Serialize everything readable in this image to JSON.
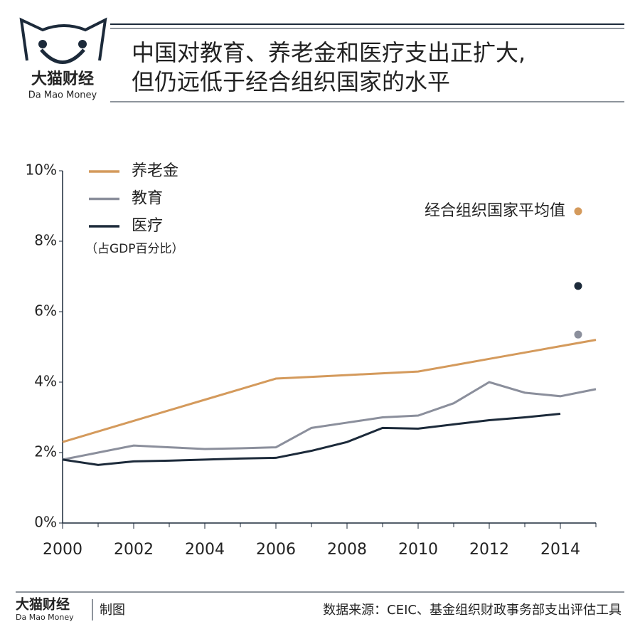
{
  "header": {
    "brand": "大猫财经",
    "brand_en": "Da Mao Money",
    "title_line1": "中国对教育、养老金和医疗支出正扩大,",
    "title_line2": "但仍远低于经合组织国家的水平"
  },
  "chart_data": {
    "type": "line",
    "unit_note": "（占GDP百分比）",
    "x": [
      2000,
      2001,
      2002,
      2003,
      2004,
      2005,
      2006,
      2007,
      2008,
      2009,
      2010,
      2011,
      2012,
      2013,
      2014,
      2015
    ],
    "xlim": [
      2000,
      2015
    ],
    "xticks": [
      2000,
      2002,
      2004,
      2006,
      2008,
      2010,
      2012,
      2014
    ],
    "ylim": [
      0,
      10
    ],
    "yticks": [
      {
        "value": 0,
        "label": "0%"
      },
      {
        "value": 2,
        "label": "2%"
      },
      {
        "value": 4,
        "label": "4%"
      },
      {
        "value": 6,
        "label": "6%"
      },
      {
        "value": 8,
        "label": "8%"
      },
      {
        "value": 10,
        "label": "10%"
      }
    ],
    "series": [
      {
        "name": "养老金",
        "color": "#d49a5c",
        "values": [
          2.3,
          2.6,
          2.9,
          3.2,
          3.5,
          3.8,
          4.1,
          4.15,
          4.2,
          4.25,
          4.3,
          4.48,
          4.66,
          4.84,
          5.02,
          5.2
        ]
      },
      {
        "name": "教育",
        "color": "#8b8f9c",
        "values": [
          1.8,
          2.0,
          2.2,
          2.15,
          2.1,
          2.12,
          2.15,
          2.7,
          2.85,
          3.0,
          3.05,
          3.4,
          4.0,
          3.7,
          3.6,
          3.8
        ]
      },
      {
        "name": "医疗",
        "color": "#1c2a3a",
        "values": [
          1.8,
          1.65,
          1.75,
          1.77,
          1.8,
          1.83,
          1.85,
          2.05,
          2.3,
          2.7,
          2.68,
          2.8,
          2.92,
          3.0,
          3.1,
          null
        ]
      }
    ],
    "oecd_label": "经合组织国家平均值",
    "oecd_x": 2014.5,
    "oecd_values": [
      8.85,
      5.35,
      6.73
    ]
  },
  "footer": {
    "brand": "大猫财经",
    "brand_en": "Da Mao Money",
    "made_by": "制图",
    "source": "数据来源：CEIC、基金组织财政事务部支出评估工具"
  }
}
